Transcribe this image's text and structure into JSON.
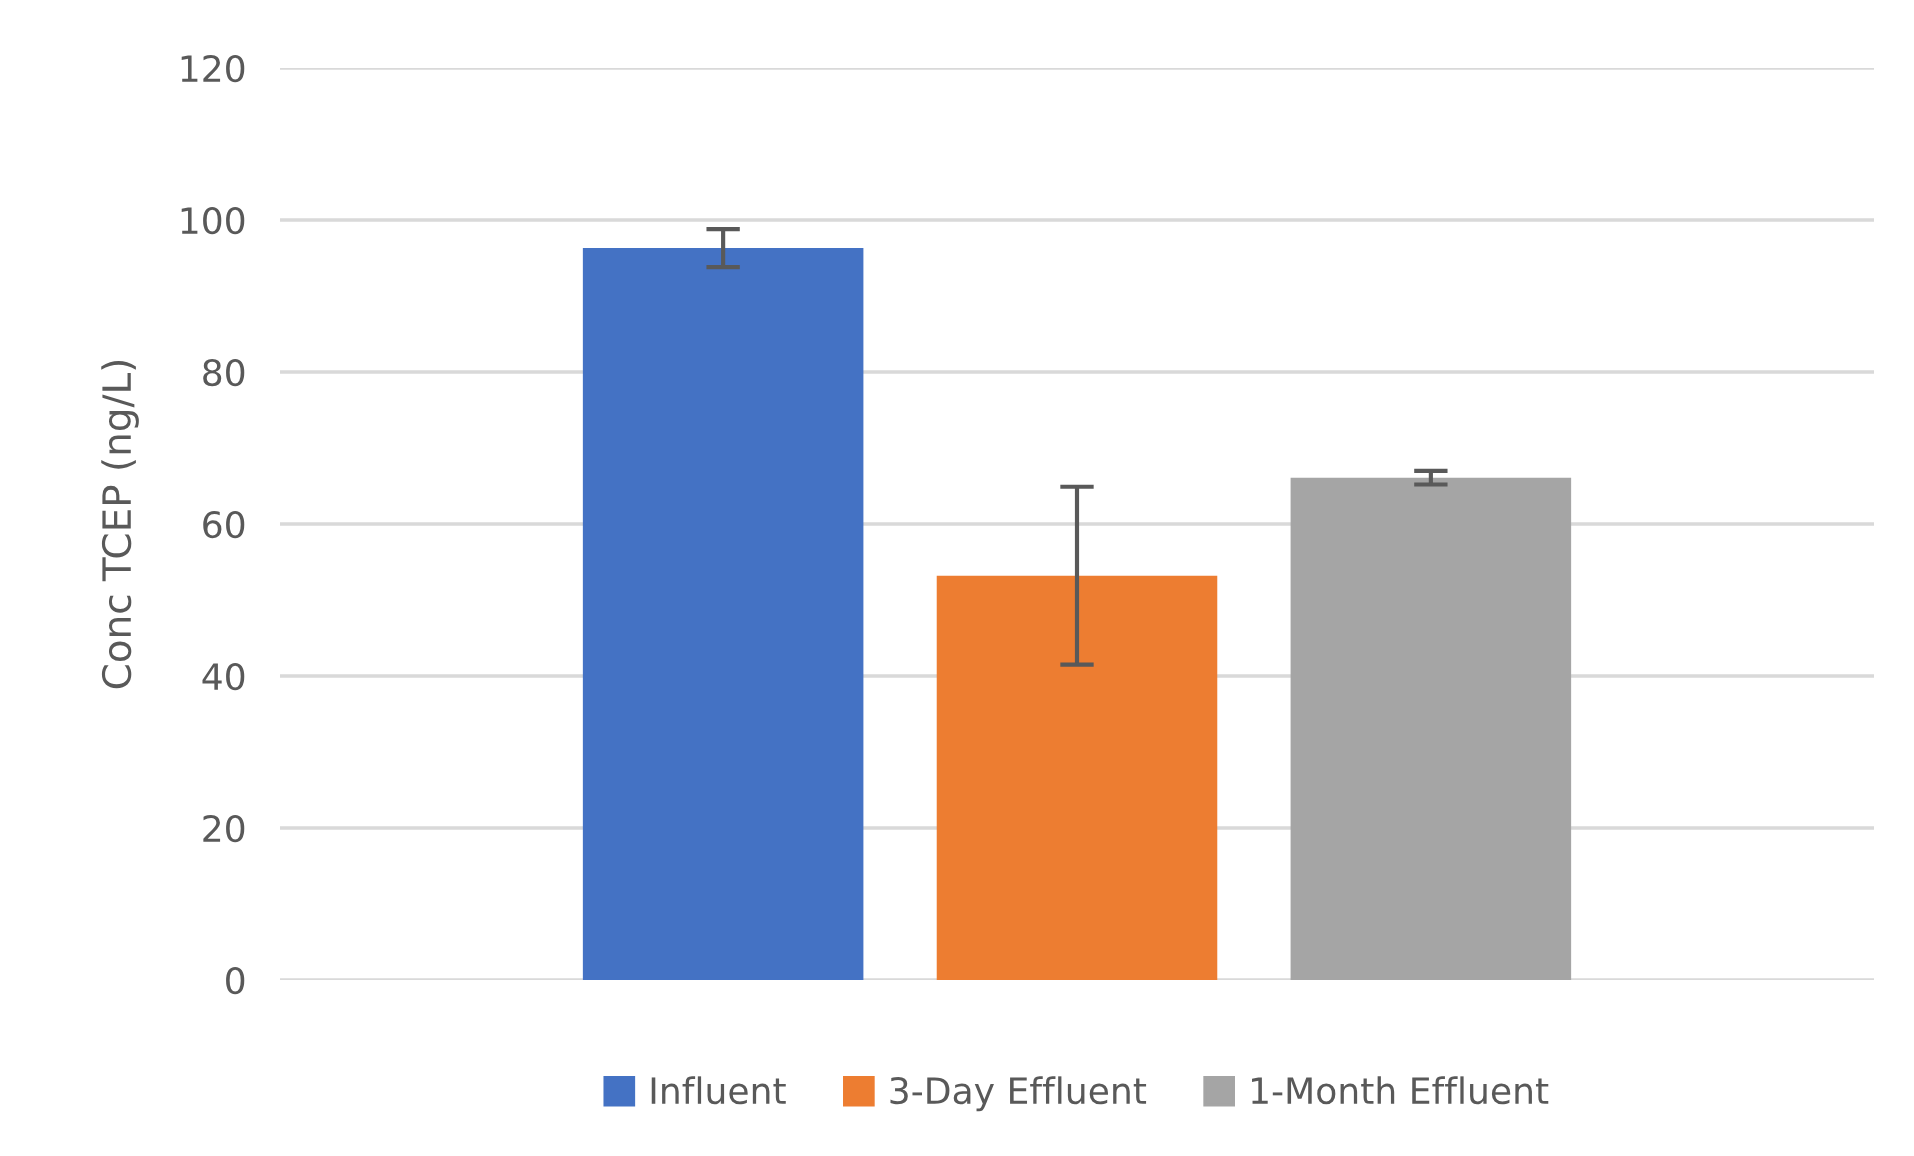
{
  "chart_data": {
    "type": "bar",
    "ylabel": "Conc TCEP (ng/L)",
    "categories": [
      null
    ],
    "series": [
      {
        "name": "Influent",
        "color": "#4472c4",
        "values": [
          96.3
        ],
        "errors": [
          2.5
        ]
      },
      {
        "name": "3-Day Effluent",
        "color": "#ed7d31",
        "values": [
          53.2
        ],
        "errors": [
          11.7
        ]
      },
      {
        "name": "1-Month Effluent",
        "color": "#a5a5a5",
        "values": [
          66.1
        ],
        "errors": [
          0.9
        ]
      }
    ],
    "ylim": [
      0,
      120
    ],
    "yticks": [
      0,
      20,
      40,
      60,
      80,
      100,
      120
    ],
    "grid": "y",
    "legend": "bottom"
  }
}
